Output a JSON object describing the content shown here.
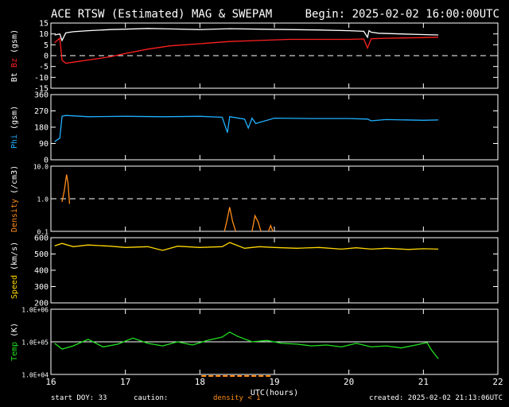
{
  "header": {
    "title": "ACE RTSW (Estimated) MAG & SWEPAM",
    "begin": "Begin: 2025-02-02 16:00:00UTC"
  },
  "footer": {
    "start_doy": "start DOY:  33",
    "caution": "caution:",
    "density_note": "density < 1",
    "created": "created: 2025-02-02 21:13:06UTC"
  },
  "colors": {
    "bt": "#ffffff",
    "bz": "#ff2020",
    "phi": "#20b0ff",
    "density": "#ff8c1a",
    "speed": "#ffd700",
    "temp": "#20e020",
    "dashed": "#ffffff",
    "caution_bar": "#ff8c1a"
  },
  "chart_data": [
    {
      "type": "line",
      "panel": "mag",
      "ylabel_parts": [
        "Bt",
        "Bz",
        "(gsm)"
      ],
      "ylim": [
        -15,
        15
      ],
      "yticks": [
        15,
        10,
        5,
        0,
        -5,
        -10,
        -15
      ],
      "reference_line": 0,
      "xlim": [
        16,
        22
      ],
      "series": [
        {
          "name": "Bt",
          "color": "#ffffff",
          "x": [
            16.05,
            16.12,
            16.15,
            16.2,
            16.3,
            16.5,
            16.8,
            17.0,
            17.3,
            17.6,
            18.0,
            18.4,
            18.8,
            19.2,
            19.6,
            20.0,
            20.2,
            20.25,
            20.27,
            20.3,
            20.4,
            20.7,
            21.0,
            21.2
          ],
          "y": [
            9.5,
            10,
            7,
            10.5,
            11,
            11.5,
            12,
            12.2,
            12.5,
            12.3,
            12,
            12.4,
            12.2,
            12,
            11.8,
            11.5,
            11.2,
            8.5,
            11.5,
            10.8,
            10.3,
            10,
            9.7,
            9.5
          ]
        },
        {
          "name": "Bz",
          "color": "#ff2020",
          "x": [
            16.05,
            16.12,
            16.15,
            16.2,
            16.3,
            16.5,
            16.8,
            17.0,
            17.3,
            17.6,
            18.0,
            18.4,
            18.8,
            19.2,
            19.6,
            20.0,
            20.2,
            20.25,
            20.3,
            20.5,
            20.8,
            21.0,
            21.2
          ],
          "y": [
            6,
            8,
            -2,
            -3.5,
            -3,
            -2,
            -0.5,
            1,
            3,
            4.5,
            5.5,
            6.5,
            7,
            7.5,
            7.5,
            7.5,
            7.7,
            3.5,
            7.8,
            8,
            8.2,
            8.3,
            8.5
          ]
        }
      ]
    },
    {
      "type": "line",
      "panel": "phi",
      "ylabel_parts": [
        "Phi",
        "(gsm)"
      ],
      "ylim": [
        0,
        360
      ],
      "yticks": [
        360,
        270,
        180,
        90,
        0
      ],
      "xlim": [
        16,
        22
      ],
      "series": [
        {
          "name": "Phi",
          "color": "#20b0ff",
          "x": [
            16.05,
            16.12,
            16.15,
            16.2,
            16.5,
            17.0,
            17.5,
            18.0,
            18.3,
            18.37,
            18.4,
            18.6,
            18.65,
            18.7,
            18.75,
            19.0,
            19.5,
            20.0,
            20.25,
            20.3,
            20.5,
            21.0,
            21.2
          ],
          "y": [
            100,
            120,
            240,
            245,
            238,
            240,
            238,
            240,
            235,
            150,
            238,
            225,
            175,
            230,
            200,
            230,
            228,
            228,
            225,
            215,
            222,
            218,
            220
          ]
        }
      ]
    },
    {
      "type": "line",
      "panel": "density",
      "ylabel_parts": [
        "Density",
        "(/cm3)"
      ],
      "yscale": "log",
      "ylim": [
        0.1,
        10
      ],
      "yticks": [
        10.0,
        1.0,
        0.1
      ],
      "ytick_labels": [
        "10.0",
        "1.0",
        "0.1"
      ],
      "reference_line": 1.0,
      "xlim": [
        16,
        22
      ],
      "series": [
        {
          "name": "Density",
          "color": "#ff8c1a",
          "segments": [
            {
              "x": [
                16.15,
                16.18,
                16.21,
                16.23,
                16.25
              ],
              "y": [
                0.8,
                1.8,
                5.5,
                3.0,
                0.7
              ]
            },
            {
              "x": [
                18.33,
                18.36,
                18.4,
                18.44,
                18.48
              ],
              "y": [
                0.1,
                0.2,
                0.55,
                0.2,
                0.1
              ]
            },
            {
              "x": [
                18.7,
                18.74,
                18.78,
                18.82
              ],
              "y": [
                0.1,
                0.3,
                0.2,
                0.1
              ]
            },
            {
              "x": [
                18.92,
                18.95,
                18.98
              ],
              "y": [
                0.1,
                0.15,
                0.1
              ]
            }
          ]
        }
      ]
    },
    {
      "type": "line",
      "panel": "speed",
      "ylabel_parts": [
        "Speed",
        "(km/s)"
      ],
      "ylim": [
        200,
        600
      ],
      "yticks": [
        600,
        500,
        400,
        300,
        200
      ],
      "xlim": [
        16,
        22
      ],
      "series": [
        {
          "name": "Speed",
          "color": "#ffd700",
          "x": [
            16.05,
            16.15,
            16.3,
            16.5,
            16.8,
            17.0,
            17.3,
            17.5,
            17.7,
            18.0,
            18.3,
            18.4,
            18.6,
            18.8,
            19.0,
            19.3,
            19.6,
            19.9,
            20.1,
            20.3,
            20.5,
            20.8,
            21.0,
            21.2
          ],
          "y": [
            550,
            565,
            545,
            555,
            548,
            540,
            545,
            522,
            548,
            540,
            545,
            570,
            535,
            545,
            540,
            535,
            540,
            530,
            538,
            530,
            535,
            528,
            532,
            530
          ]
        }
      ]
    },
    {
      "type": "line",
      "panel": "temp",
      "ylabel_parts": [
        "Temp",
        "(K)"
      ],
      "yscale": "log",
      "ylim": [
        10000,
        1000000
      ],
      "yticks": [
        1000000,
        100000,
        10000
      ],
      "ytick_labels": [
        "1.0E+06",
        "1.0E+05",
        "1.0E+04"
      ],
      "reference_line": 100000,
      "xlim": [
        16,
        22
      ],
      "series": [
        {
          "name": "Temp",
          "color": "#20e020",
          "x": [
            16.05,
            16.15,
            16.3,
            16.5,
            16.7,
            16.9,
            17.1,
            17.3,
            17.5,
            17.7,
            17.9,
            18.1,
            18.3,
            18.4,
            18.5,
            18.7,
            18.9,
            19.1,
            19.3,
            19.5,
            19.7,
            19.9,
            20.1,
            20.3,
            20.5,
            20.7,
            20.9,
            21.05,
            21.1,
            21.2
          ],
          "y": [
            90000,
            60000,
            75000,
            120000,
            70000,
            85000,
            130000,
            90000,
            75000,
            100000,
            80000,
            110000,
            140000,
            200000,
            150000,
            100000,
            110000,
            90000,
            85000,
            75000,
            80000,
            70000,
            90000,
            70000,
            75000,
            65000,
            80000,
            95000,
            60000,
            30000
          ]
        }
      ]
    }
  ],
  "x_axis": {
    "label": "UTC(hours)",
    "ticks": [
      "16",
      "17",
      "18",
      "19",
      "20",
      "21",
      "22"
    ]
  }
}
